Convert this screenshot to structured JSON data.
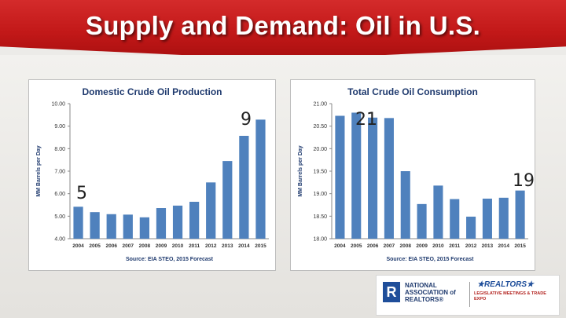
{
  "slide": {
    "title": "Supply and Demand: Oil in U.S."
  },
  "colors": {
    "banner": "#c21818",
    "bar": "#4f81bd",
    "title_text": "#1f3a6e"
  },
  "overlays": {
    "production_high": "9",
    "production_low": "5",
    "consumption_high": "21",
    "consumption_low": "19"
  },
  "footer": {
    "r_logo": "R",
    "nar_label": "NATIONAL\nASSOCIATION of\nREALTORS®",
    "realtors_label": "★REALTORS★",
    "realtors_sub": "LEGISLATIVE MEETINGS & TRADE EXPO"
  },
  "chart_data": [
    {
      "type": "bar",
      "title": "Domestic Crude Oil Production",
      "ylabel": "MM Barrels per Day",
      "source": "Source: EIA STEO, 2015 Forecast",
      "categories": [
        "2004",
        "2005",
        "2006",
        "2007",
        "2008",
        "2009",
        "2010",
        "2011",
        "2012",
        "2013",
        "2014",
        "2015"
      ],
      "values": [
        5.42,
        5.18,
        5.09,
        5.07,
        4.95,
        5.36,
        5.47,
        5.64,
        6.5,
        7.45,
        8.57,
        9.29
      ],
      "ylim": [
        4.0,
        10.0
      ],
      "yticks": [
        "4.00",
        "5.00",
        "6.00",
        "7.00",
        "8.00",
        "9.00",
        "10.00"
      ],
      "grid": false
    },
    {
      "type": "bar",
      "title": "Total Crude Oil Consumption",
      "ylabel": "MM Barrels per Day",
      "source": "Source: EIA STEO, 2015 Forecast",
      "categories": [
        "2004",
        "2005",
        "2006",
        "2007",
        "2008",
        "2009",
        "2010",
        "2011",
        "2012",
        "2013",
        "2014",
        "2015"
      ],
      "values": [
        20.73,
        20.8,
        20.69,
        20.68,
        19.5,
        18.77,
        19.18,
        18.88,
        18.49,
        18.89,
        18.91,
        19.07
      ],
      "ylim": [
        18.0,
        21.0
      ],
      "yticks": [
        "18.00",
        "18.50",
        "19.00",
        "19.50",
        "20.00",
        "20.50",
        "21.00"
      ],
      "grid": false
    }
  ]
}
